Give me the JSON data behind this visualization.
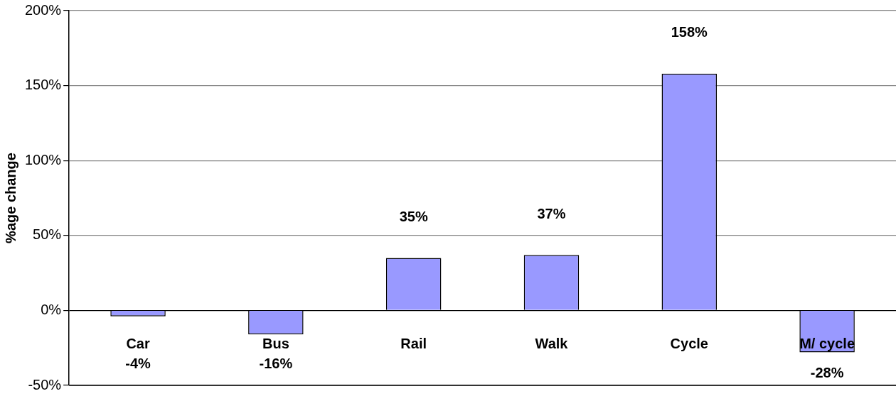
{
  "chart_data": {
    "type": "bar",
    "ylabel": "%age change",
    "categories": [
      "Car",
      "Bus",
      "Rail",
      "Walk",
      "Cycle",
      "M/ cycle"
    ],
    "values": [
      -4,
      -16,
      35,
      37,
      158,
      -28
    ],
    "value_labels": [
      "-4%",
      "-16%",
      "35%",
      "37%",
      "158%",
      "-28%"
    ],
    "color": "#9999ff",
    "ylim": [
      -50,
      200
    ],
    "yticks": [
      {
        "value": -50,
        "label": "-50%"
      },
      {
        "value": 0,
        "label": "0%"
      },
      {
        "value": 50,
        "label": "50%"
      },
      {
        "value": 100,
        "label": "100%"
      },
      {
        "value": 150,
        "label": "150%"
      },
      {
        "value": 200,
        "label": "200%"
      }
    ],
    "grid": "y"
  }
}
